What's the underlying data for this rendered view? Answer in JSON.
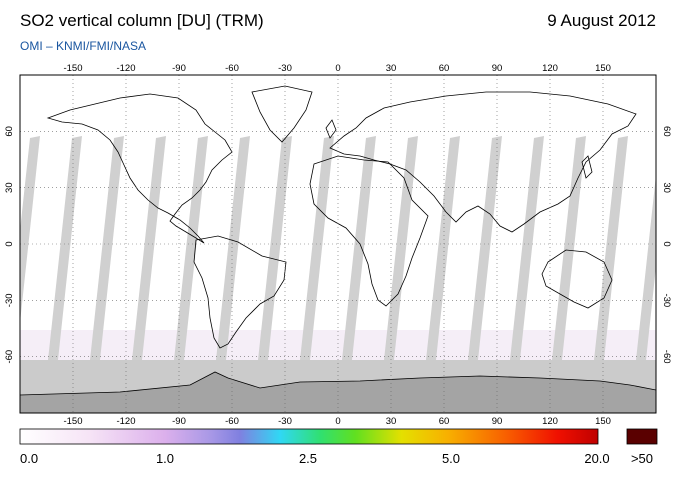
{
  "header": {
    "title": "SO2 vertical column [DU] (TRM)",
    "date": "9 August 2012",
    "credit": "OMI  –  KNMI/FMI/NASA"
  },
  "map": {
    "projection": "equirectangular",
    "lon_range": [
      -180,
      180
    ],
    "lat_range": [
      -90,
      90
    ],
    "lon_ticks": [
      "-150",
      "-120",
      "-90",
      "-60",
      "-30",
      "0",
      "30",
      "60",
      "90",
      "120",
      "150"
    ],
    "lat_ticks": [
      "60",
      "30",
      "0",
      "-30",
      "-60"
    ],
    "gridlines": "dotted",
    "background_color": "#ffffff",
    "no_data_swath_color": "#d0d0d0",
    "polar_no_data_color": "#c8c8c8",
    "coastline_color": "#000000"
  },
  "colorbar": {
    "tick_labels": [
      "0.0",
      "1.0",
      "2.5",
      "5.0",
      "20.0"
    ],
    "overflow_label": ">50",
    "overflow_color": "#5a0000",
    "color_stops": [
      "#ffffff",
      "#f4dcf4",
      "#d8a8e8",
      "#9090e0",
      "#30e0f0",
      "#30e030",
      "#e8e000",
      "#f08000",
      "#ff0000",
      "#c00000"
    ]
  }
}
